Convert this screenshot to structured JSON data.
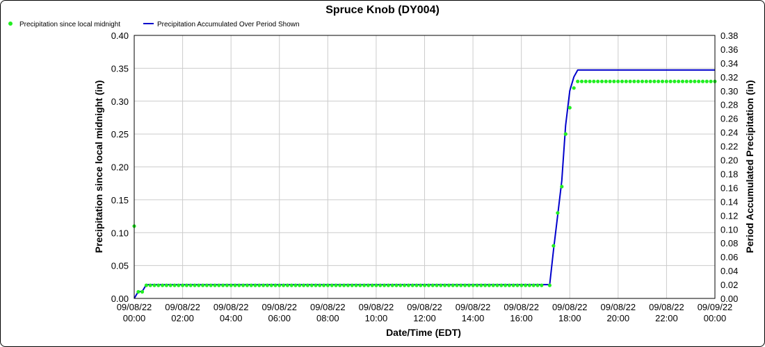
{
  "chart_data": {
    "type": "line",
    "title": "Spruce Knob (DY004)",
    "xlabel": "Date/Time (EDT)",
    "ylabel_left": "Precipitation since local midnight (in)",
    "ylabel_right": "Period Accumulated Precipitation (in)",
    "x_ticks": [
      {
        "date": "09/08/22",
        "time": "00:00"
      },
      {
        "date": "09/08/22",
        "time": "02:00"
      },
      {
        "date": "09/08/22",
        "time": "04:00"
      },
      {
        "date": "09/08/22",
        "time": "06:00"
      },
      {
        "date": "09/08/22",
        "time": "08:00"
      },
      {
        "date": "09/08/22",
        "time": "10:00"
      },
      {
        "date": "09/08/22",
        "time": "12:00"
      },
      {
        "date": "09/08/22",
        "time": "14:00"
      },
      {
        "date": "09/08/22",
        "time": "16:00"
      },
      {
        "date": "09/08/22",
        "time": "18:00"
      },
      {
        "date": "09/08/22",
        "time": "20:00"
      },
      {
        "date": "09/08/22",
        "time": "22:00"
      },
      {
        "date": "09/09/22",
        "time": "00:00"
      }
    ],
    "x_range_hours": [
      0,
      24
    ],
    "y_left": {
      "min": 0,
      "max": 0.4,
      "ticks": [
        "0.00",
        "0.05",
        "0.10",
        "0.15",
        "0.20",
        "0.25",
        "0.30",
        "0.35",
        "0.40"
      ]
    },
    "y_right": {
      "min": 0,
      "max": 0.38,
      "ticks": [
        "0.00",
        "0.02",
        "0.04",
        "0.06",
        "0.08",
        "0.10",
        "0.12",
        "0.14",
        "0.16",
        "0.18",
        "0.20",
        "0.22",
        "0.24",
        "0.26",
        "0.28",
        "0.30",
        "0.32",
        "0.34",
        "0.36",
        "0.38"
      ]
    },
    "grid": true,
    "legend_position": "top-left",
    "series": [
      {
        "name": "Precipitation since local midnight",
        "style": "markers",
        "color": "#22ee22",
        "axis": "left",
        "points": [
          {
            "x": 0.0,
            "y": 0.11
          },
          {
            "x": 0.17,
            "y": 0.01
          },
          {
            "x": 0.33,
            "y": 0.01
          },
          {
            "x": 17.17,
            "y": 0.02
          },
          {
            "x": 17.33,
            "y": 0.08
          },
          {
            "x": 17.5,
            "y": 0.13
          },
          {
            "x": 17.67,
            "y": 0.17
          },
          {
            "x": 17.83,
            "y": 0.25
          },
          {
            "x": 18.0,
            "y": 0.29
          },
          {
            "x": 18.17,
            "y": 0.32
          }
        ],
        "plateaus": [
          {
            "from": 0.5,
            "to": 17.0,
            "step": 0.1667,
            "y": 0.02
          },
          {
            "from": 18.33,
            "to": 24.0,
            "step": 0.1667,
            "y": 0.33
          }
        ]
      },
      {
        "name": "Precipitation Accumulated Over Period Shown",
        "style": "line",
        "color": "#0000cc",
        "axis": "right",
        "points": [
          {
            "x": 0.0,
            "y": 0.0
          },
          {
            "x": 0.17,
            "y": 0.01
          },
          {
            "x": 0.33,
            "y": 0.01
          },
          {
            "x": 0.5,
            "y": 0.02
          },
          {
            "x": 17.17,
            "y": 0.02
          },
          {
            "x": 17.33,
            "y": 0.07
          },
          {
            "x": 17.5,
            "y": 0.12
          },
          {
            "x": 17.67,
            "y": 0.17
          },
          {
            "x": 17.83,
            "y": 0.25
          },
          {
            "x": 18.0,
            "y": 0.3
          },
          {
            "x": 18.17,
            "y": 0.32
          },
          {
            "x": 18.33,
            "y": 0.33
          },
          {
            "x": 24.0,
            "y": 0.33
          }
        ]
      }
    ]
  }
}
